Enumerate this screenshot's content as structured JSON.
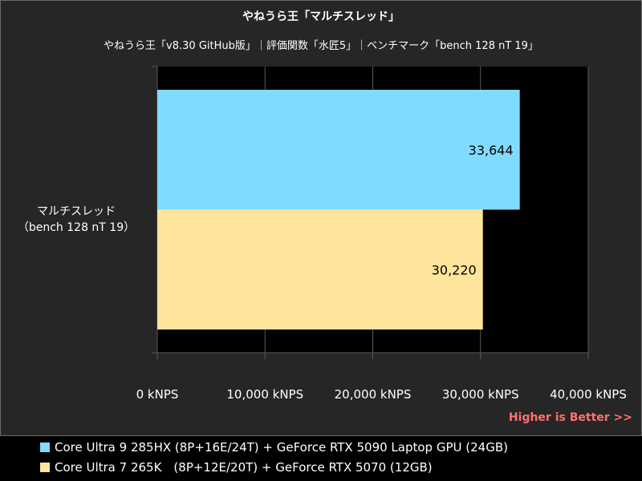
{
  "chart_data": {
    "type": "bar",
    "orientation": "horizontal",
    "title": "やねうら王「マルチスレッド」",
    "subtitle": "やねうら王「v8.30 GitHub版」｜評価関数「水匠5」｜ベンチマーク「bench 128 nT 19」",
    "categories": [
      "マルチスレッド\n（bench 128 nT 19）"
    ],
    "category_lines": [
      "マルチスレッド",
      "（bench 128 nT 19）"
    ],
    "series": [
      {
        "name": "Core Ultra 9 285HX (8P+16E/24T) + GeForce RTX 5090 Laptop GPU (24GB)",
        "values": [
          33644
        ],
        "label": "33,644",
        "color": "#80dcff"
      },
      {
        "name": "Core Ultra 7 265K　(8P+12E/20T) + GeForce RTX 5070 (12GB)",
        "values": [
          30220
        ],
        "label": "30,220",
        "color": "#ffe49c"
      }
    ],
    "xlim": [
      0,
      40000
    ],
    "xticks": [
      0,
      10000,
      20000,
      30000,
      40000
    ],
    "xtick_labels": [
      "0 kNPS",
      "10,000 kNPS",
      "20,000 kNPS",
      "30,000 kNPS",
      "40,000 kNPS"
    ],
    "grid": true,
    "legend_position": "bottom",
    "annotation": "Higher is Better >>"
  },
  "colors": {
    "background": "#262626",
    "plot_background": "#000000",
    "grid": "#5a5a5a",
    "annotation": "#ff7070"
  }
}
